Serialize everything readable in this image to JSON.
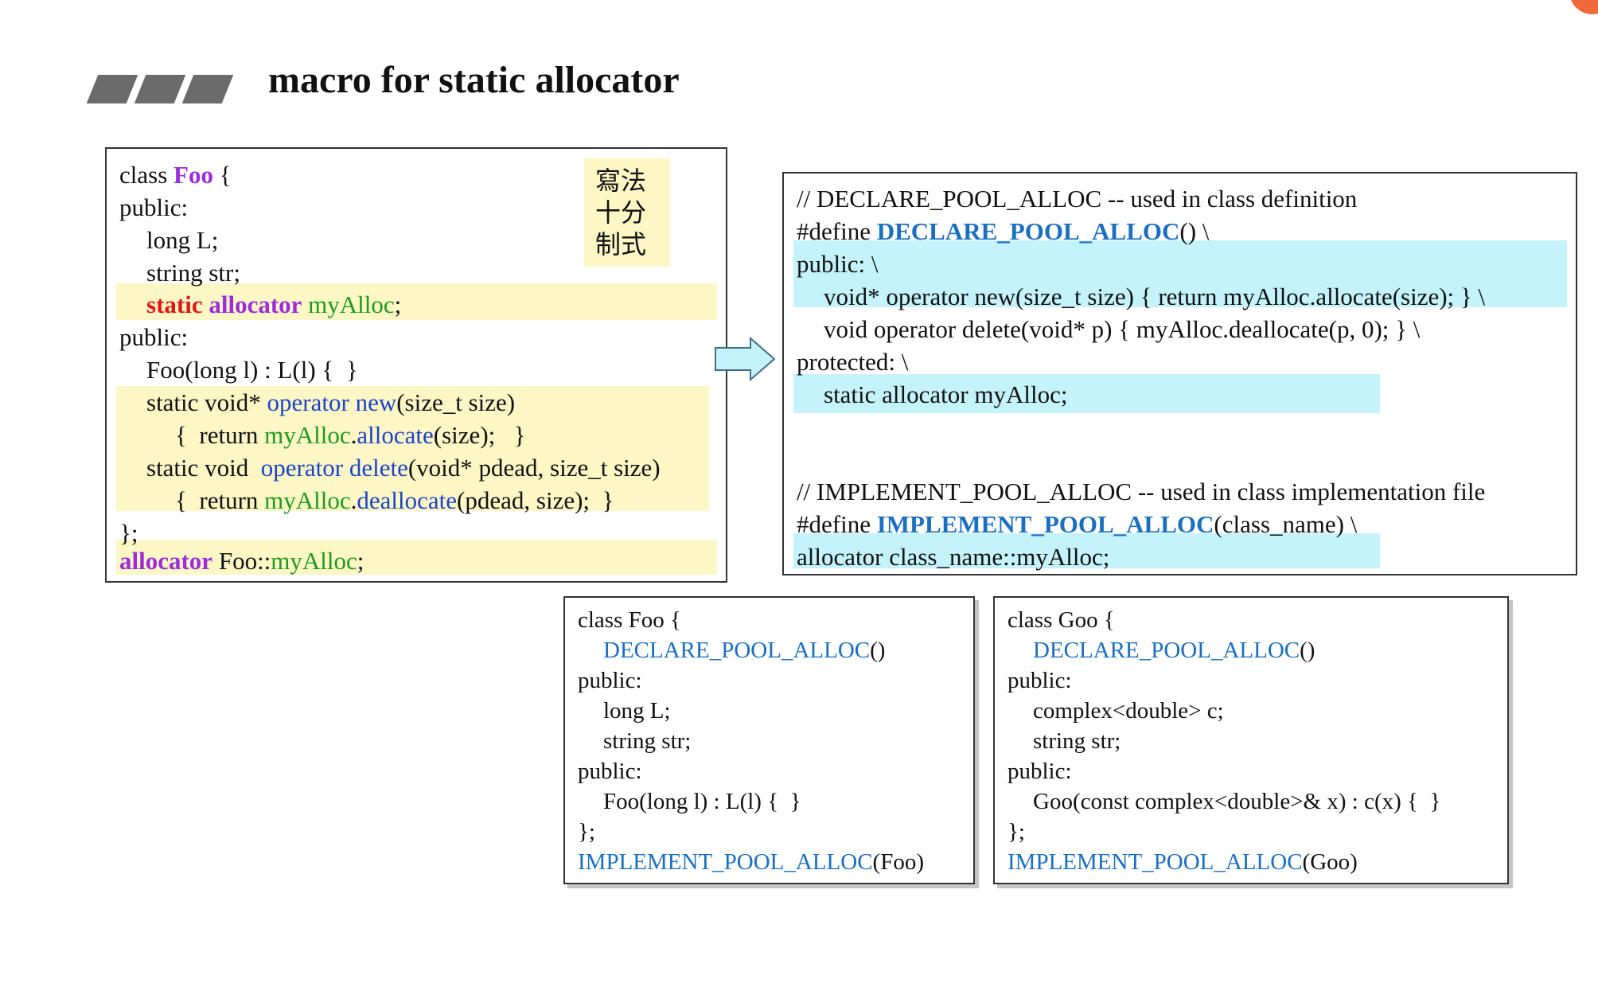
{
  "title": "macro for static allocator",
  "colors": {
    "highlight_yellow": "#fcf7c5",
    "highlight_cyan": "#c4f3fb",
    "keyword_red": "#e01818",
    "keyword_purple": "#9c2cdc",
    "member_green": "#1f9a1f",
    "call_blue": "#1c43c8",
    "macro_blue": "#1a6fc1"
  },
  "foo_code": {
    "l1_a": "class ",
    "l1_b": "Foo",
    "l1_c": " {",
    "l2": "public:",
    "l3": "long L;",
    "l4": "string str;",
    "l5_a": "static",
    "l5_b": "allocator",
    "l5_c": "myAlloc",
    "l5_d": ";",
    "l6": "public:",
    "l7": "Foo(long l) : L(l) {  }",
    "l8_a": "static void* ",
    "l8_b": "operator new",
    "l8_c": "(size_t size)",
    "l9_a": "{  return ",
    "l9_b": "myAlloc",
    "l9_c": ".",
    "l9_d": "allocate",
    "l9_e": "(size);   }",
    "l10_a": "static void  ",
    "l10_b": "operator delete",
    "l10_c": "(void* pdead, size_t size)",
    "l11_a": "{  return ",
    "l11_b": "myAlloc",
    "l11_c": ".",
    "l11_d": "deallocate",
    "l11_e": "(pdead, size);  }",
    "l12": "};",
    "l13_a": "allocator",
    "l13_b": " Foo::",
    "l13_c": "myAlloc",
    "l13_d": ";",
    "note": [
      "寫法",
      "十分",
      "制式"
    ]
  },
  "macro_code": {
    "l1": "// DECLARE_POOL_ALLOC -- used in class definition",
    "l2_a": "#define ",
    "l2_b": "DECLARE_POOL_ALLOC",
    "l2_c": "() \\",
    "l3": "public: \\",
    "l4": "void* operator new(size_t size) { return myAlloc.allocate(size); } \\",
    "l5": "void operator delete(void* p) { myAlloc.deallocate(p, 0); } \\",
    "l6": "protected: \\",
    "l7": "static allocator myAlloc;",
    "l8": "// IMPLEMENT_POOL_ALLOC -- used in class implementation file",
    "l9_a": "#define ",
    "l9_b": "IMPLEMENT_POOL_ALLOC",
    "l9_c": "(class_name) \\",
    "l10": "allocator class_name::myAlloc;"
  },
  "foo_example": {
    "l1": "class Foo {",
    "l2_a": "DECLARE_POOL_ALLOC",
    "l2_b": "()",
    "l3": "public:",
    "l4": "long L;",
    "l5": "string str;",
    "l6": "public:",
    "l7": "Foo(long l) : L(l) {  }",
    "l8": "};",
    "l9_a": "IMPLEMENT_POOL_ALLOC",
    "l9_b": "(Foo)"
  },
  "goo_example": {
    "l1": "class Goo {",
    "l2_a": "DECLARE_POOL_ALLOC",
    "l2_b": "()",
    "l3": "public:",
    "l4": "complex<double> c;",
    "l5": "string str;",
    "l6": "public:",
    "l7": "Goo(const complex<double>& x) : c(x) {  }",
    "l8": "};",
    "l9_a": "IMPLEMENT_POOL_ALLOC",
    "l9_b": "(Goo)"
  }
}
